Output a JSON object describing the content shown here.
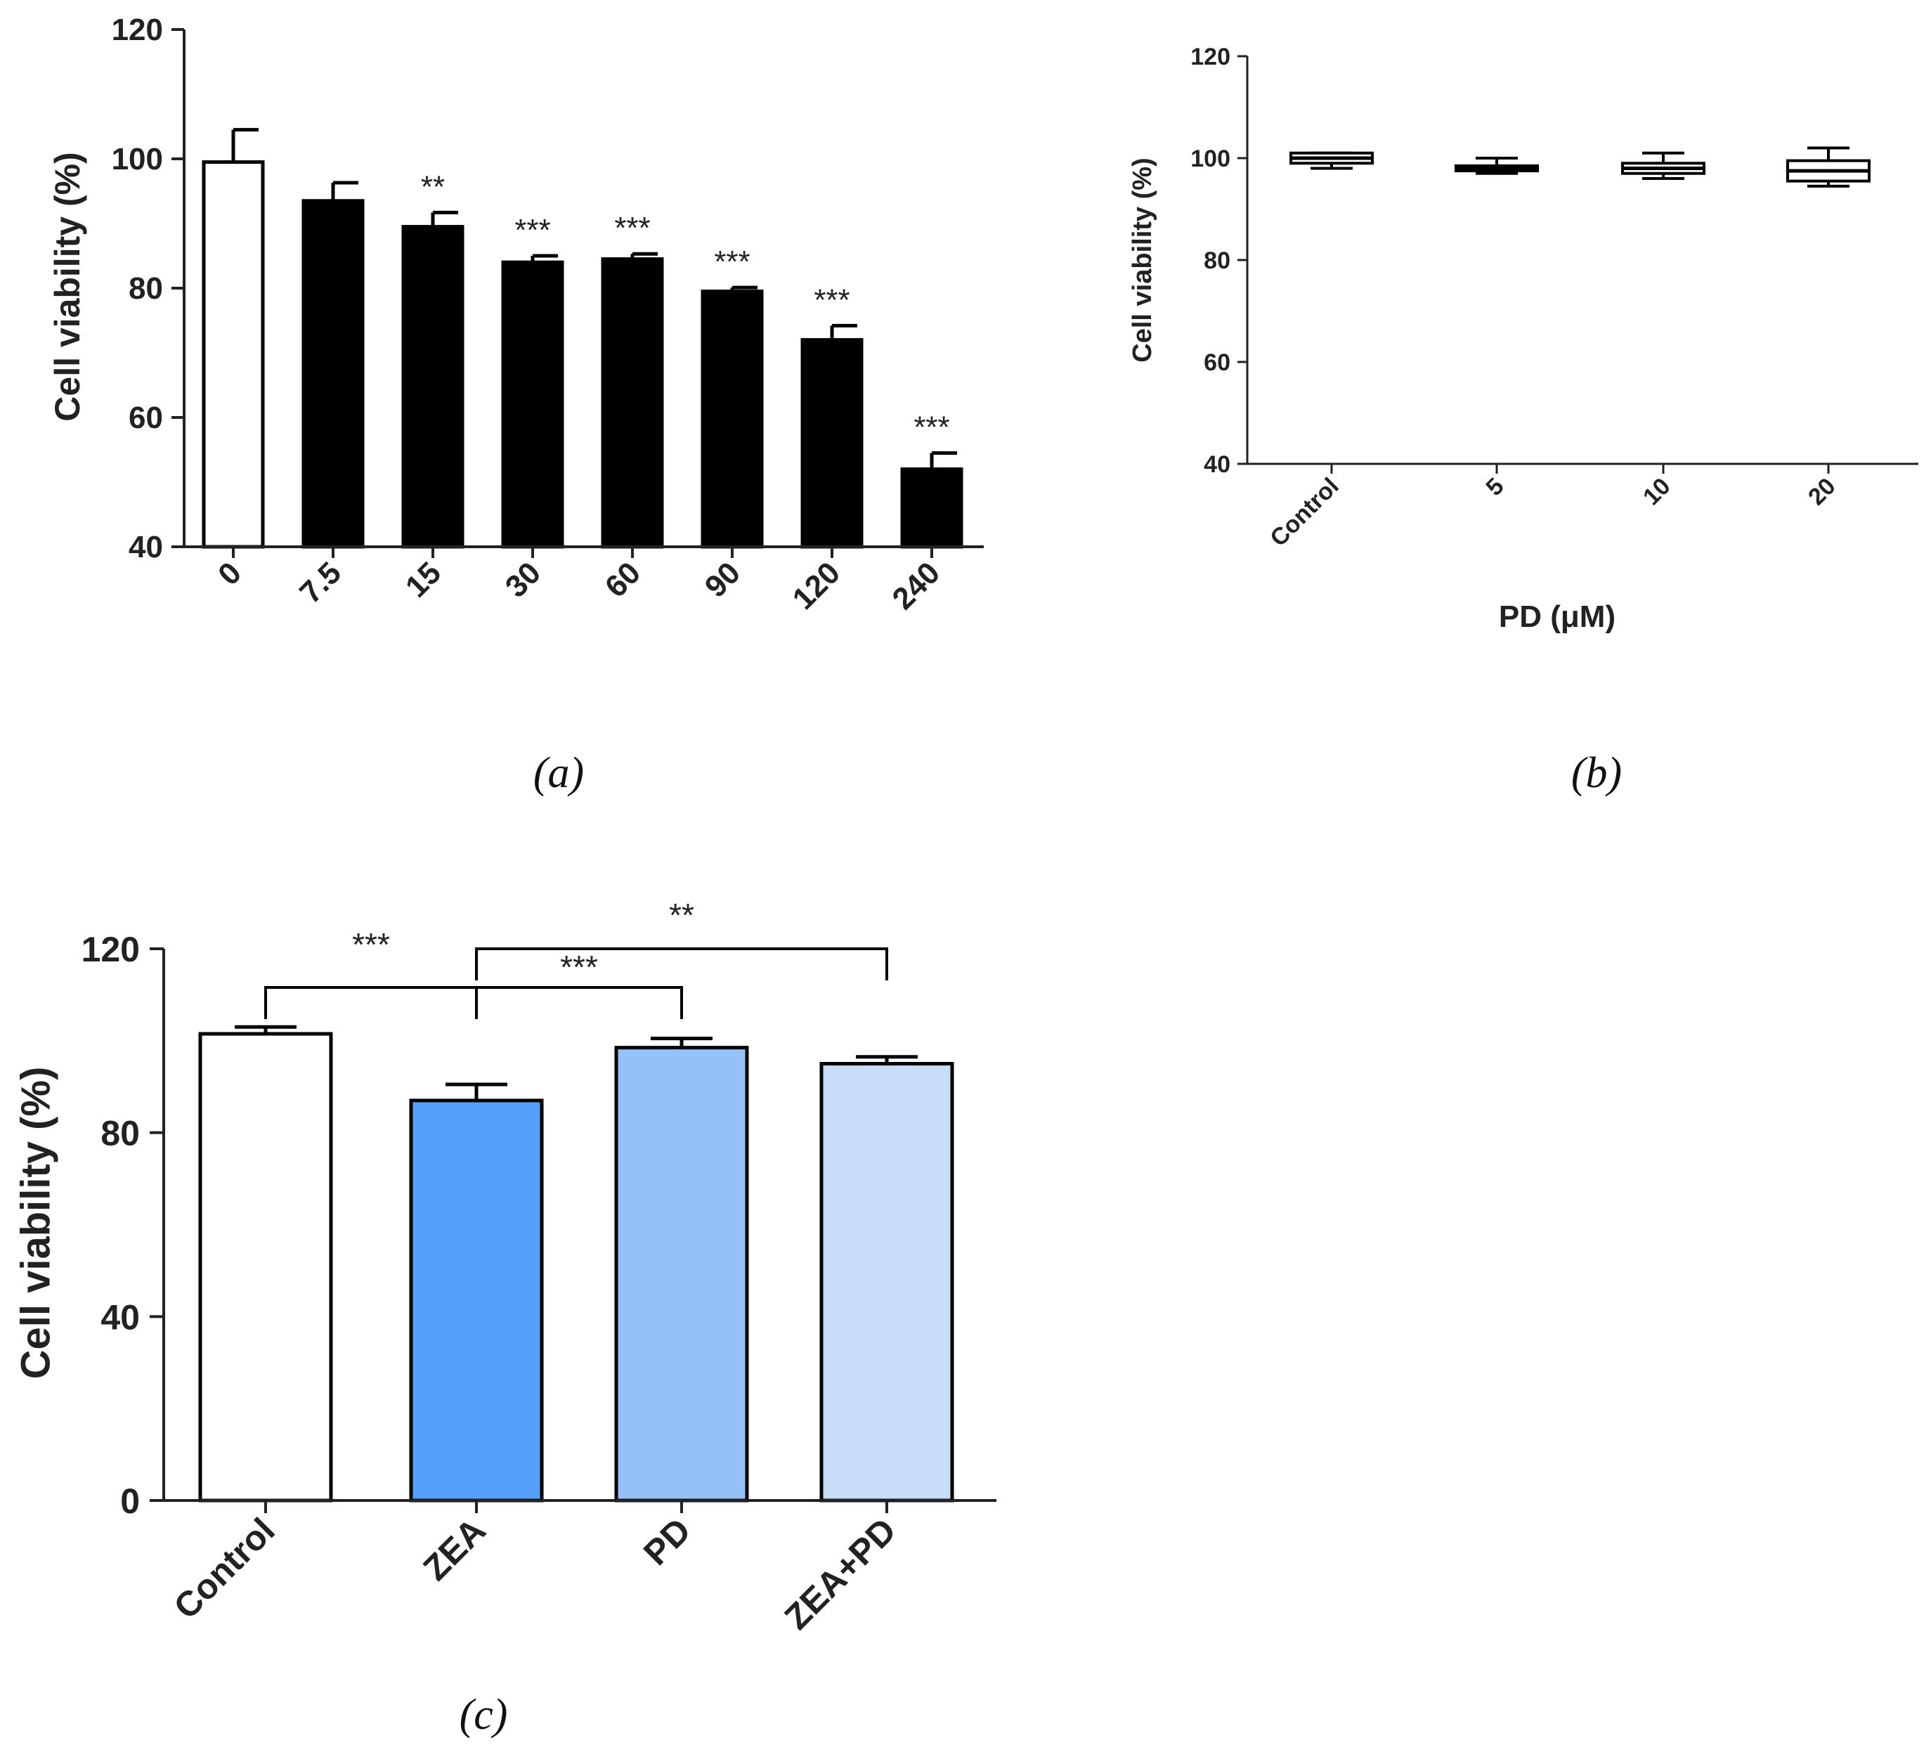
{
  "chart_data": [
    {
      "type": "bar",
      "panel_label": "(a)",
      "categories": [
        "0",
        "7.5",
        "15",
        "30",
        "60",
        "90",
        "120",
        "240"
      ],
      "values": [
        99.5,
        93.5,
        89.5,
        84,
        84.5,
        79.5,
        72,
        52
      ],
      "errors": [
        5,
        2.8,
        2.2,
        1,
        0.8,
        0.6,
        2.2,
        2.5
      ],
      "significance": [
        "",
        "",
        "**",
        "***",
        "***",
        "***",
        "***",
        "***"
      ],
      "bar_colors": [
        "#ffffff",
        "#000000",
        "#000000",
        "#000000",
        "#000000",
        "#000000",
        "#000000",
        "#000000"
      ],
      "ylabel": "Cell viability (%)",
      "xlabel": "",
      "ylim": [
        40,
        120
      ],
      "yticks": [
        "40",
        "60",
        "80",
        "100",
        "120"
      ]
    },
    {
      "type": "box",
      "panel_label": "(b)",
      "categories": [
        "Control",
        "5",
        "10",
        "20"
      ],
      "boxes": [
        {
          "min": 98,
          "q1": 99,
          "median": 100,
          "q3": 101,
          "max": 101
        },
        {
          "min": 97,
          "q1": 97.5,
          "median": 98,
          "q3": 98.5,
          "max": 100
        },
        {
          "min": 96,
          "q1": 97,
          "median": 98,
          "q3": 99,
          "max": 101
        },
        {
          "min": 94.5,
          "q1": 95.5,
          "median": 97.5,
          "q3": 99.5,
          "max": 102
        }
      ],
      "ylabel": "Cell viability (%)",
      "xlabel": "PD (μM)",
      "ylim": [
        40,
        120
      ],
      "yticks": [
        "40",
        "60",
        "80",
        "100",
        "120"
      ]
    },
    {
      "type": "bar",
      "panel_label": "(c)",
      "categories": [
        "Control",
        "ZEA",
        "PD",
        "ZEA+PD"
      ],
      "values": [
        101.5,
        87,
        98.5,
        95
      ],
      "errors": [
        1.5,
        3.5,
        2,
        1.5
      ],
      "bar_colors": [
        "#ffffff",
        "#55a0f9",
        "#93c1f8",
        "#c8ddf7"
      ],
      "ylabel": "Cell viability (%)",
      "xlabel": "",
      "ylim": [
        0,
        120
      ],
      "yticks": [
        "0",
        "40",
        "80",
        "120"
      ],
      "comparisons": [
        {
          "from": 0,
          "to": 1,
          "label": "***"
        },
        {
          "from": 1,
          "to": 2,
          "label": "***"
        },
        {
          "from": 1,
          "to": 3,
          "label": "**"
        }
      ]
    }
  ]
}
